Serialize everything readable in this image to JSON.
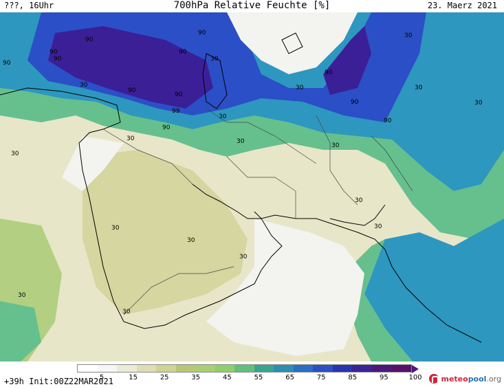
{
  "header": {
    "left": "???, 16Uhr",
    "title": "700hPa Relative Feuchte [%]",
    "date": "23. Maerz 2021"
  },
  "footer": {
    "run_info": "+39h Init:00Z22MAR2021",
    "logo_text": {
      "a": "meteo",
      "b": "pool",
      "c": ".org"
    }
  },
  "legend": {
    "labels": [
      "5",
      "15",
      "25",
      "35",
      "45",
      "55",
      "65",
      "75",
      "85",
      "95",
      "100"
    ],
    "colors": [
      "#ffffff",
      "#f6f6f4",
      "#ecebd8",
      "#e0ddb4",
      "#cfd393",
      "#b8c775",
      "#a9cf72",
      "#8fce6b",
      "#62c07a",
      "#3aa58e",
      "#2a8fb0",
      "#2a6fc4",
      "#2b50c4",
      "#2a34b0",
      "#3a2498",
      "#4b1a78",
      "#5a1068"
    ]
  },
  "map": {
    "labels": [
      "90",
      "90",
      "90",
      "90",
      "90",
      "90",
      "90",
      "90",
      "90",
      "90",
      "90",
      "90",
      "99",
      "30",
      "30",
      "30",
      "30",
      "30",
      "30",
      "30",
      "30",
      "30",
      "30",
      "30",
      "30",
      "30",
      "30",
      "30",
      "30",
      "30",
      "30"
    ],
    "colors": {
      "very_dry": "#f3f3f0",
      "dry": "#e8e6c8",
      "medium_dry": "#d5d6a0",
      "moist": "#b3cf82",
      "humid": "#65c08d",
      "wet": "#2e97bf",
      "very_wet": "#2b4fc6",
      "saturated": "#3b1f97",
      "coast": "#000000",
      "border": "#444444"
    }
  }
}
